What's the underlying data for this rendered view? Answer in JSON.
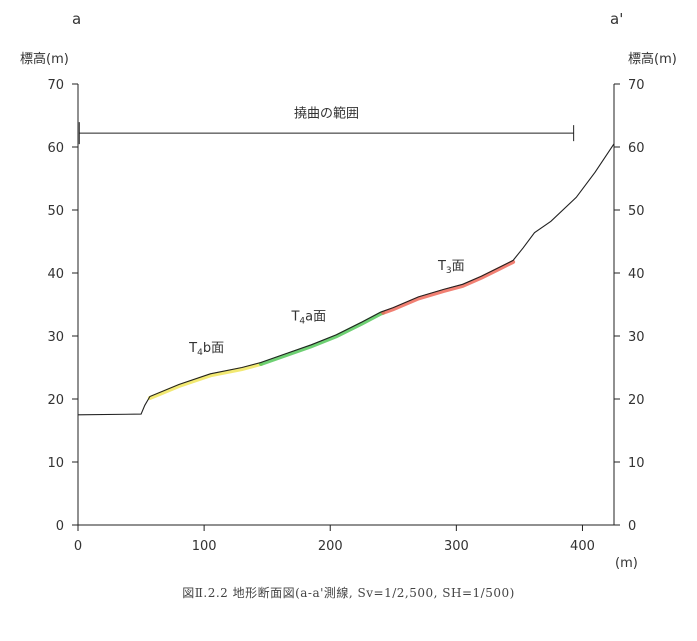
{
  "chart_data": {
    "type": "line",
    "left_end_label": "a",
    "right_end_label": "a'",
    "ylabel_left": "標高(m)",
    "ylabel_right": "標高(m)",
    "xunit_label": "(m)",
    "xlim": [
      0,
      425
    ],
    "ylim": [
      0,
      70
    ],
    "x_ticks": [
      0,
      100,
      200,
      300,
      400
    ],
    "x_tick_labels": [
      "0",
      "100",
      "200",
      "300",
      "400"
    ],
    "y_ticks": [
      0,
      10,
      20,
      30,
      40,
      50,
      60,
      70
    ],
    "y_tick_labels": [
      "0",
      "10",
      "20",
      "30",
      "40",
      "50",
      "60",
      "70"
    ],
    "grid": false,
    "series": [
      {
        "points": [
          [
            0,
            17.5
          ],
          [
            50,
            17.6
          ],
          [
            53,
            19.0
          ],
          [
            57,
            20.4
          ],
          [
            80,
            22.3
          ],
          [
            105,
            24.0
          ],
          [
            130,
            25.0
          ],
          [
            145,
            25.8
          ],
          [
            165,
            27.2
          ],
          [
            185,
            28.6
          ],
          [
            205,
            30.2
          ],
          [
            225,
            32.2
          ],
          [
            240,
            33.8
          ],
          [
            250,
            34.5
          ],
          [
            270,
            36.2
          ],
          [
            290,
            37.4
          ],
          [
            305,
            38.2
          ],
          [
            320,
            39.5
          ],
          [
            335,
            41.0
          ],
          [
            345,
            42.0
          ],
          [
            353,
            44.0
          ],
          [
            362,
            46.4
          ],
          [
            375,
            48.2
          ],
          [
            395,
            52.0
          ],
          [
            410,
            56.0
          ],
          [
            425,
            60.5
          ]
        ]
      }
    ],
    "highlights": [
      {
        "label_prefix": "T",
        "label_sub": "4",
        "label_suffix": "b面",
        "x_from": 57,
        "x_to": 145,
        "color": "#f0e55a",
        "label_at": [
          102,
          27.5
        ]
      },
      {
        "label_prefix": "T",
        "label_sub": "4",
        "label_suffix": "a面",
        "x_from": 145,
        "x_to": 242,
        "color": "#55c85a",
        "label_at": [
          183,
          32.5
        ]
      },
      {
        "label_prefix": "T",
        "label_sub": "3",
        "label_suffix": "面",
        "x_from": 242,
        "x_to": 345,
        "color": "#ee6a5a",
        "label_at": [
          296,
          40.5
        ]
      }
    ],
    "range_annotation": {
      "label": "撓曲の範囲",
      "x_from": 1,
      "x_to": 393,
      "y": 62.2,
      "label_y": 65.5
    },
    "caption": "図Ⅱ.2.2 地形断面図(a-a'測線, Sv=1/2,500, SH=1/500)"
  }
}
